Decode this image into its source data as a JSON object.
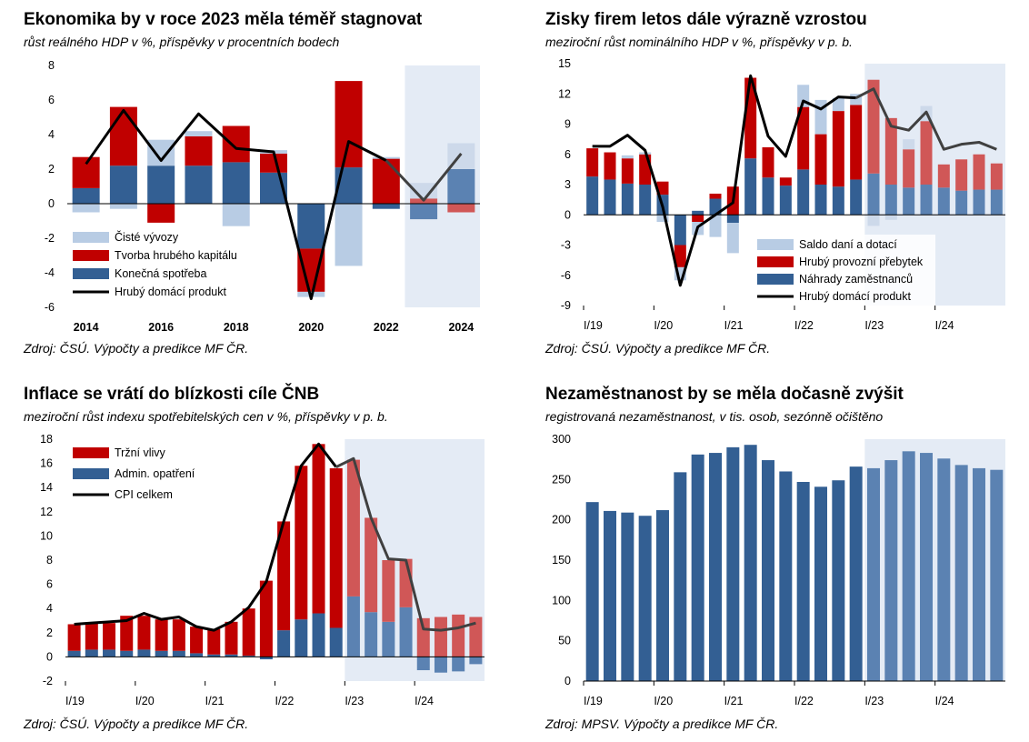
{
  "colors": {
    "navy": "#335f93",
    "red": "#c00000",
    "light_blue": "#b8cce4",
    "forecast_bg": "#e4ebf5",
    "navy_f": "#5b82b2",
    "red_f": "#d05757",
    "light_blue_f": "#cdd9ea",
    "line": "#000000",
    "line_f": "#404040"
  },
  "chart_data": [
    {
      "id": "gdp",
      "type": "bar",
      "title": "Ekonomika by v roce 2023 měla téměř stagnovat",
      "subtitle": "růst reálného HDP v %, příspěvky v procentních bodech",
      "source": "Zdroj: ČSÚ. Výpočty a predikce MF ČR.",
      "x": [
        2014,
        2015,
        2016,
        2017,
        2018,
        2019,
        2020,
        2021,
        2022,
        2023,
        2024
      ],
      "x_tick_labels": [
        "2014",
        "",
        "2016",
        "",
        "2018",
        "",
        "2020",
        "",
        "2022",
        "",
        "2024"
      ],
      "forecast_from": 2023,
      "ylim": [
        -6,
        8
      ],
      "yticks": [
        -6,
        -4,
        -2,
        0,
        2,
        4,
        6,
        8
      ],
      "legend_position": "bottom-left",
      "series": [
        {
          "name": "Čisté vývozy",
          "kind": "bar",
          "color": "light_blue",
          "values": [
            -0.5,
            -0.3,
            1.5,
            0.3,
            -1.3,
            0.2,
            -0.3,
            -3.6,
            0.1,
            0.9,
            1.5
          ]
        },
        {
          "name": "Tvorba hrubého kapitálu",
          "kind": "bar",
          "color": "red",
          "values": [
            1.8,
            3.4,
            -1.1,
            1.7,
            2.1,
            1.1,
            -2.5,
            5.0,
            2.6,
            0.3,
            -0.5
          ]
        },
        {
          "name": "Konečná spotřeba",
          "kind": "bar",
          "color": "navy",
          "values": [
            0.9,
            2.2,
            2.2,
            2.2,
            2.4,
            1.8,
            -2.6,
            2.1,
            -0.3,
            -0.9,
            2.0
          ]
        },
        {
          "name": "Hrubý domácí produkt",
          "kind": "line",
          "values": [
            2.3,
            5.4,
            2.5,
            5.2,
            3.2,
            3.0,
            -5.5,
            3.6,
            2.5,
            0.2,
            2.9
          ]
        }
      ]
    },
    {
      "id": "profits",
      "type": "bar",
      "title": "Zisky firem letos dále výrazně vzrostou",
      "subtitle": "meziroční růst nominálního HDP v %, příspěvky v p. b.",
      "source": "Zdroj: ČSÚ. Výpočty a predikce MF ČR.",
      "x": [
        "I/19",
        "II/19",
        "III/19",
        "IV/19",
        "I/20",
        "II/20",
        "III/20",
        "IV/20",
        "I/21",
        "II/21",
        "III/21",
        "IV/21",
        "I/22",
        "II/22",
        "III/22",
        "IV/22",
        "I/23",
        "II/23",
        "III/23",
        "IV/23",
        "I/24",
        "II/24",
        "III/24",
        "IV/24"
      ],
      "x_tick_labels": [
        "I/19",
        "",
        "",
        "",
        "I/20",
        "",
        "",
        "",
        "I/21",
        "",
        "",
        "",
        "I/22",
        "",
        "",
        "",
        "I/23",
        "",
        "",
        "",
        "I/24",
        "",
        "",
        ""
      ],
      "forecast_from": "I/23",
      "ylim": [
        -9,
        15
      ],
      "yticks": [
        -9,
        -6,
        -3,
        0,
        3,
        6,
        9,
        12,
        15
      ],
      "legend_position": "bottom-right",
      "series": [
        {
          "name": "Saldo daní a dotací",
          "kind": "bar",
          "color": "light_blue",
          "values": [
            0.0,
            0.0,
            0.3,
            0.2,
            -0.7,
            -1.3,
            -1.3,
            -2.2,
            -3.0,
            0.0,
            0.0,
            0.0,
            2.2,
            3.4,
            1.3,
            1.1,
            -1.1,
            -0.5,
            1.0,
            1.5,
            0.0,
            0.0,
            0.0,
            0.0
          ]
        },
        {
          "name": "Hrubý provozní přebytek",
          "kind": "bar",
          "color": "red",
          "values": [
            2.8,
            2.7,
            2.5,
            3.0,
            1.3,
            -2.2,
            -0.7,
            0.5,
            2.8,
            8.0,
            3.0,
            0.8,
            6.2,
            5.0,
            7.5,
            7.4,
            9.3,
            6.6,
            3.8,
            6.3,
            2.3,
            3.1,
            3.5,
            2.6
          ]
        },
        {
          "name": "Náhrady zaměstnanců",
          "kind": "bar",
          "color": "navy",
          "values": [
            3.8,
            3.5,
            3.1,
            3.0,
            2.0,
            -3.0,
            0.4,
            1.6,
            -0.8,
            5.6,
            3.7,
            2.9,
            4.5,
            3.0,
            2.8,
            3.5,
            4.1,
            3.0,
            2.7,
            3.0,
            2.7,
            2.4,
            2.5,
            2.5
          ]
        },
        {
          "name": "Hrubý domácí produkt",
          "kind": "line",
          "values": [
            6.8,
            6.8,
            7.9,
            6.4,
            0.8,
            -7.0,
            -1.2,
            0.0,
            1.2,
            13.8,
            7.8,
            5.8,
            11.3,
            10.5,
            11.7,
            11.6,
            12.5,
            8.8,
            8.4,
            10.2,
            6.5,
            7.0,
            7.2,
            6.5
          ]
        }
      ]
    },
    {
      "id": "inflation",
      "type": "bar",
      "title": "Inflace se vrátí do blízkosti cíle ČNB",
      "subtitle": "meziroční růst indexu spotřebitelských cen v %, příspěvky v p. b.",
      "source": "Zdroj: ČSÚ. Výpočty a predikce MF ČR.",
      "x": [
        "I/19",
        "II/19",
        "III/19",
        "IV/19",
        "I/20",
        "II/20",
        "III/20",
        "IV/20",
        "I/21",
        "II/21",
        "III/21",
        "IV/21",
        "I/22",
        "II/22",
        "III/22",
        "IV/22",
        "I/23",
        "II/23",
        "III/23",
        "IV/23",
        "I/24",
        "II/24",
        "III/24",
        "IV/24"
      ],
      "x_tick_labels": [
        "I/19",
        "",
        "",
        "",
        "I/20",
        "",
        "",
        "",
        "I/21",
        "",
        "",
        "",
        "I/22",
        "",
        "",
        "",
        "I/23",
        "",
        "",
        "",
        "I/24",
        "",
        "",
        ""
      ],
      "forecast_from": "I/23",
      "ylim": [
        -2,
        18
      ],
      "yticks": [
        -2,
        0,
        2,
        4,
        6,
        8,
        10,
        12,
        14,
        16,
        18
      ],
      "legend_position": "top-left",
      "series": [
        {
          "name": "Tržní vlivy",
          "kind": "bar",
          "color": "red",
          "values": [
            2.2,
            2.2,
            2.2,
            2.9,
            2.8,
            2.6,
            2.6,
            2.2,
            2.1,
            2.7,
            3.9,
            6.3,
            9.0,
            12.7,
            14.0,
            13.2,
            11.3,
            7.8,
            5.1,
            4.0,
            3.2,
            3.3,
            3.5,
            3.3
          ]
        },
        {
          "name": "Admin. opatření",
          "kind": "bar",
          "color": "navy",
          "values": [
            0.5,
            0.6,
            0.6,
            0.5,
            0.6,
            0.5,
            0.5,
            0.3,
            0.2,
            0.2,
            0.1,
            -0.2,
            2.2,
            3.1,
            3.6,
            2.4,
            5.0,
            3.7,
            2.9,
            4.1,
            -1.1,
            -1.3,
            -1.2,
            -0.6
          ]
        },
        {
          "name": "CPI celkem",
          "kind": "line",
          "values": [
            2.7,
            2.8,
            2.9,
            3.0,
            3.6,
            3.1,
            3.3,
            2.5,
            2.2,
            2.9,
            4.1,
            6.2,
            11.2,
            15.8,
            17.6,
            15.7,
            16.4,
            11.5,
            8.1,
            8.0,
            2.3,
            2.2,
            2.4,
            2.8
          ]
        }
      ]
    },
    {
      "id": "unemployment",
      "type": "bar",
      "title": "Nezaměstnanost by se měla dočasně zvýšit",
      "subtitle": "registrovaná nezaměstnanost, v tis. osob, sezónně očištěno",
      "source": "Zdroj: MPSV. Výpočty a predikce MF ČR.",
      "x": [
        "I/19",
        "II/19",
        "III/19",
        "IV/19",
        "I/20",
        "II/20",
        "III/20",
        "IV/20",
        "I/21",
        "II/21",
        "III/21",
        "IV/21",
        "I/22",
        "II/22",
        "III/22",
        "IV/22",
        "I/23",
        "II/23",
        "III/23",
        "IV/23",
        "I/24",
        "II/24",
        "III/24",
        "IV/24"
      ],
      "x_tick_labels": [
        "I/19",
        "",
        "",
        "",
        "I/20",
        "",
        "",
        "",
        "I/21",
        "",
        "",
        "",
        "I/22",
        "",
        "",
        "",
        "I/23",
        "",
        "",
        "",
        "I/24",
        "",
        "",
        ""
      ],
      "forecast_from": "I/23",
      "ylim": [
        0,
        300
      ],
      "yticks": [
        0,
        50,
        100,
        150,
        200,
        250,
        300
      ],
      "series": [
        {
          "kind": "bar",
          "color": "navy",
          "values": [
            222,
            211,
            209,
            205,
            212,
            259,
            281,
            283,
            290,
            293,
            274,
            260,
            247,
            241,
            249,
            266,
            264,
            274,
            285,
            283,
            276,
            268,
            264,
            262
          ]
        }
      ]
    }
  ]
}
